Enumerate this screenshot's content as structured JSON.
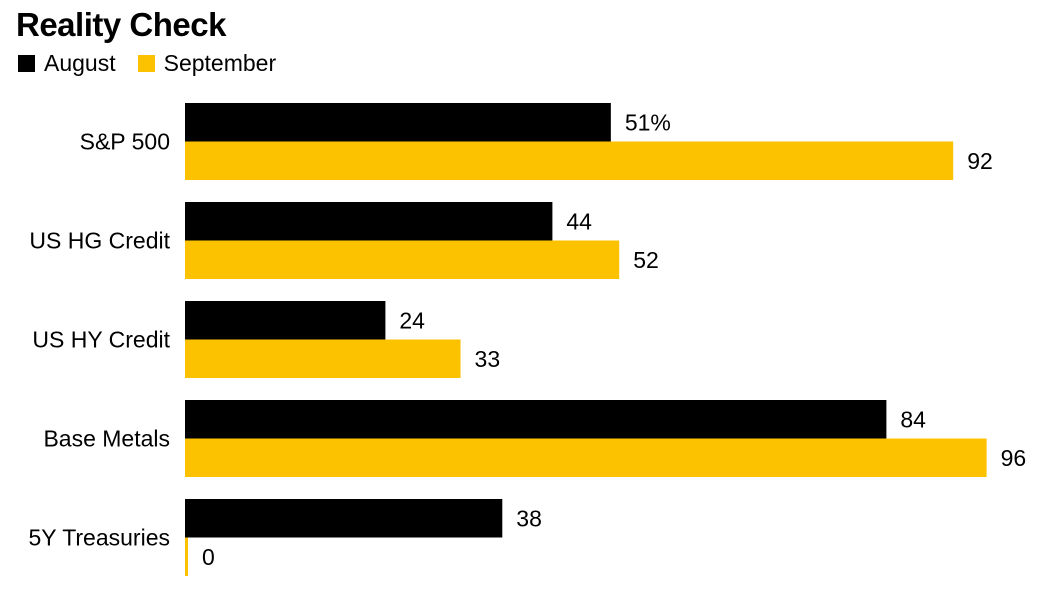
{
  "title": "Reality Check",
  "colors": {
    "august": "#000000",
    "september": "#fcc200"
  },
  "chart_data": {
    "type": "bar",
    "orientation": "horizontal",
    "title": "Reality Check",
    "categories": [
      "S&P 500",
      "US HG Credit",
      "US HY Credit",
      "Base Metals",
      "5Y Treasuries"
    ],
    "series": [
      {
        "name": "August",
        "values": [
          51,
          44,
          24,
          84,
          38
        ],
        "labels": [
          "51%",
          "44",
          "24",
          "84",
          "38"
        ]
      },
      {
        "name": "September",
        "values": [
          92,
          52,
          33,
          96,
          0
        ],
        "labels": [
          "92",
          "52",
          "33",
          "96",
          "0"
        ]
      }
    ],
    "xlim": [
      0,
      100
    ],
    "grid": false,
    "legend_position": "top-left"
  }
}
